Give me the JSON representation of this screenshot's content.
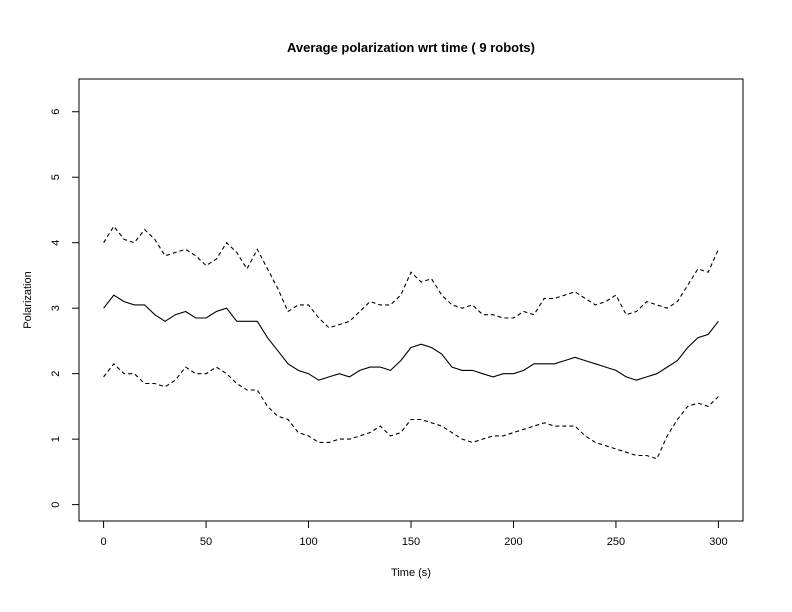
{
  "chart_data": {
    "type": "line",
    "title": "Average polarization wrt time ( 9 robots)",
    "xlabel": "Time (s)",
    "ylabel": "Polarization",
    "xlim": [
      -12,
      312
    ],
    "ylim": [
      -0.25,
      6.5
    ],
    "xticks": [
      0,
      50,
      100,
      150,
      200,
      250,
      300
    ],
    "yticks": [
      0,
      1,
      2,
      3,
      4,
      5,
      6
    ],
    "grid": false,
    "legend": "none",
    "x": [
      0,
      5,
      10,
      15,
      20,
      25,
      30,
      35,
      40,
      45,
      50,
      55,
      60,
      65,
      70,
      75,
      80,
      85,
      90,
      95,
      100,
      105,
      110,
      115,
      120,
      125,
      130,
      135,
      140,
      145,
      150,
      155,
      160,
      165,
      170,
      175,
      180,
      185,
      190,
      195,
      200,
      205,
      210,
      215,
      220,
      225,
      230,
      235,
      240,
      245,
      250,
      255,
      260,
      265,
      270,
      275,
      280,
      285,
      290,
      295,
      300
    ],
    "series": [
      {
        "line_style": "dashed",
        "values": [
          4.0,
          4.25,
          4.05,
          4.0,
          4.2,
          4.05,
          3.8,
          3.85,
          3.9,
          3.8,
          3.65,
          3.75,
          4.0,
          3.85,
          3.6,
          3.9,
          3.6,
          3.3,
          2.95,
          3.05,
          3.05,
          2.85,
          2.7,
          2.75,
          2.8,
          2.95,
          3.1,
          3.05,
          3.05,
          3.2,
          3.55,
          3.4,
          3.45,
          3.2,
          3.05,
          3.0,
          3.05,
          2.9,
          2.9,
          2.85,
          2.85,
          2.95,
          2.9,
          3.15,
          3.15,
          3.2,
          3.25,
          3.15,
          3.05,
          3.1,
          3.2,
          2.9,
          2.95,
          3.1,
          3.05,
          3.0,
          3.1,
          3.35,
          3.6,
          3.55,
          3.9
        ]
      },
      {
        "line_style": "solid",
        "values": [
          3.0,
          3.2,
          3.1,
          3.05,
          3.05,
          2.9,
          2.8,
          2.9,
          2.95,
          2.85,
          2.85,
          2.95,
          3.0,
          2.8,
          2.8,
          2.8,
          2.55,
          2.35,
          2.15,
          2.05,
          2.0,
          1.9,
          1.95,
          2.0,
          1.95,
          2.05,
          2.1,
          2.1,
          2.05,
          2.2,
          2.4,
          2.45,
          2.4,
          2.3,
          2.1,
          2.05,
          2.05,
          2.0,
          1.95,
          2.0,
          2.0,
          2.05,
          2.15,
          2.15,
          2.15,
          2.2,
          2.25,
          2.2,
          2.15,
          2.1,
          2.05,
          1.95,
          1.9,
          1.95,
          2.0,
          2.1,
          2.2,
          2.4,
          2.55,
          2.6,
          2.8
        ]
      },
      {
        "line_style": "dashed",
        "values": [
          1.95,
          2.15,
          2.0,
          2.0,
          1.85,
          1.85,
          1.8,
          1.9,
          2.1,
          2.0,
          2.0,
          2.1,
          2.0,
          1.85,
          1.75,
          1.75,
          1.5,
          1.35,
          1.3,
          1.1,
          1.05,
          0.95,
          0.95,
          1.0,
          1.0,
          1.05,
          1.1,
          1.2,
          1.05,
          1.1,
          1.3,
          1.3,
          1.25,
          1.2,
          1.1,
          1.0,
          0.95,
          1.0,
          1.05,
          1.05,
          1.1,
          1.15,
          1.2,
          1.25,
          1.2,
          1.2,
          1.2,
          1.05,
          0.95,
          0.9,
          0.85,
          0.8,
          0.75,
          0.75,
          0.7,
          1.05,
          1.3,
          1.5,
          1.55,
          1.5,
          1.65
        ]
      }
    ]
  }
}
